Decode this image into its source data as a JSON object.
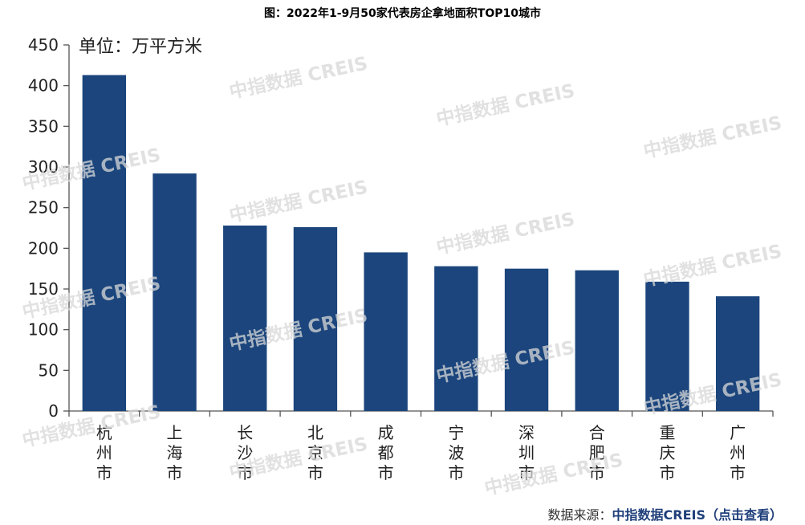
{
  "title": "图：2022年1-9月50家代表房企拿地面积TOP10城市",
  "unit_label": "单位：万平方米",
  "watermark_text": "中指数据 CREIS",
  "source": {
    "prefix": "数据来源：",
    "link": "中指数据CREIS（点击查看）"
  },
  "colors": {
    "bar": "#1b457c",
    "axis": "#555555",
    "link": "#1f3f7a"
  },
  "chart_data": {
    "type": "bar",
    "title": "图：2022年1-9月50家代表房企拿地面积TOP10城市",
    "xlabel": "",
    "ylabel": "单位：万平方米",
    "categories": [
      "杭州市",
      "上海市",
      "长沙市",
      "北京市",
      "成都市",
      "宁波市",
      "深圳市",
      "合肥市",
      "重庆市",
      "广州市"
    ],
    "values": [
      413,
      292,
      228,
      226,
      195,
      178,
      175,
      173,
      159,
      141
    ],
    "ylim": [
      0,
      450
    ],
    "yticks": [
      0,
      50,
      100,
      150,
      200,
      250,
      300,
      350,
      400,
      450
    ],
    "grid": false,
    "legend": "none"
  }
}
